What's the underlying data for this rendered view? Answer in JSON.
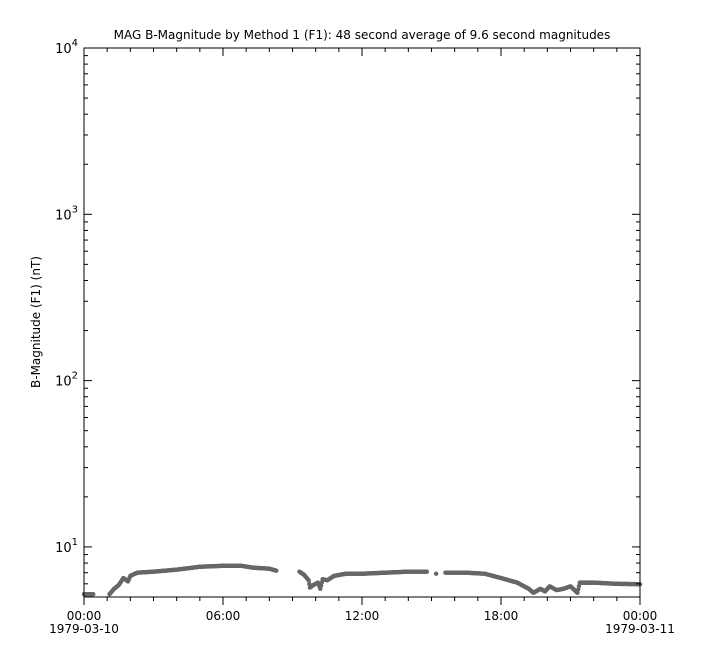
{
  "chart_data": {
    "type": "scatter",
    "title": "MAG  B-Magnitude by Method 1 (F1): 48 second average of 9.6 second magnitudes",
    "ylabel": "B-Magnitude (F1) (nT)",
    "xlabel": "",
    "yscale": "log",
    "ylim": [
      5,
      10000
    ],
    "xlim": [
      "1979-03-10 00:00",
      "1979-03-11 00:00"
    ],
    "y_ticks": [
      {
        "value": 10,
        "base": "10",
        "exp": "1"
      },
      {
        "value": 100,
        "base": "10",
        "exp": "2"
      },
      {
        "value": 1000,
        "base": "10",
        "exp": "3"
      },
      {
        "value": 10000,
        "base": "10",
        "exp": "4"
      }
    ],
    "x_ticks": [
      {
        "hour": 0,
        "label": "00:00",
        "date": "1979-03-10"
      },
      {
        "hour": 6,
        "label": "06:00",
        "date": ""
      },
      {
        "hour": 12,
        "label": "12:00",
        "date": ""
      },
      {
        "hour": 18,
        "label": "18:00",
        "date": ""
      },
      {
        "hour": 24,
        "label": "00:00",
        "date": "1979-03-11"
      }
    ],
    "grid": false,
    "marker_color": "#666666",
    "segments": [
      [
        [
          0.0,
          5.2
        ],
        [
          0.4,
          5.2
        ]
      ],
      [
        [
          1.1,
          5.2
        ],
        [
          1.3,
          5.6
        ],
        [
          1.5,
          5.9
        ],
        [
          1.7,
          6.5
        ],
        [
          1.9,
          6.2
        ],
        [
          2.0,
          6.7
        ],
        [
          2.3,
          7.0
        ],
        [
          3.0,
          7.1
        ],
        [
          4.0,
          7.3
        ],
        [
          5.0,
          7.6
        ],
        [
          6.0,
          7.7
        ],
        [
          6.8,
          7.7
        ],
        [
          7.3,
          7.5
        ],
        [
          8.0,
          7.4
        ],
        [
          8.3,
          7.2
        ]
      ],
      [
        [
          9.3,
          7.1
        ],
        [
          9.5,
          6.8
        ],
        [
          9.7,
          6.3
        ],
        [
          9.75,
          5.7
        ],
        [
          9.9,
          5.9
        ],
        [
          10.1,
          6.1
        ],
        [
          10.2,
          5.6
        ],
        [
          10.3,
          6.4
        ],
        [
          10.5,
          6.3
        ],
        [
          10.8,
          6.7
        ],
        [
          11.3,
          6.9
        ],
        [
          12.0,
          6.9
        ],
        [
          13.0,
          7.0
        ],
        [
          14.0,
          7.1
        ],
        [
          14.8,
          7.1
        ]
      ],
      [
        [
          15.2,
          6.9
        ]
      ],
      [
        [
          15.6,
          7.0
        ],
        [
          16.5,
          7.0
        ],
        [
          17.3,
          6.9
        ],
        [
          18.0,
          6.5
        ],
        [
          18.7,
          6.1
        ],
        [
          19.2,
          5.6
        ],
        [
          19.4,
          5.3
        ],
        [
          19.7,
          5.6
        ],
        [
          19.9,
          5.4
        ],
        [
          20.1,
          5.8
        ],
        [
          20.4,
          5.5
        ],
        [
          20.7,
          5.6
        ],
        [
          21.0,
          5.8
        ],
        [
          21.3,
          5.3
        ],
        [
          21.4,
          6.1
        ],
        [
          22.0,
          6.1
        ],
        [
          23.0,
          6.0
        ],
        [
          24.0,
          5.97
        ]
      ]
    ]
  }
}
